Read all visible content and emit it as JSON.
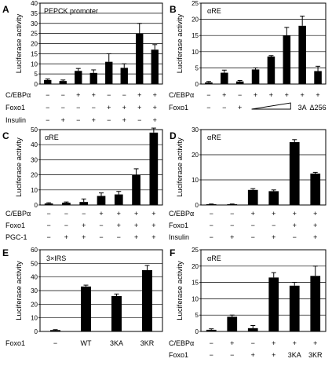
{
  "figure": {
    "panels": [
      {
        "id": "A",
        "title": "PEPCK promoter",
        "ylabel": "Luciferase activity",
        "ylim": [
          0,
          40
        ],
        "ticks": [
          "0",
          "5",
          "10",
          "15",
          "20",
          "25",
          "30",
          "35",
          "40"
        ],
        "tick_values": [
          0,
          5,
          10,
          15,
          20,
          25,
          30,
          35,
          40
        ],
        "values": [
          2,
          1.5,
          6.5,
          5.5,
          11,
          8,
          25,
          17
        ],
        "errors": [
          0.5,
          0.5,
          1.2,
          1.5,
          4,
          2,
          5,
          2.5
        ],
        "rows": [
          {
            "label": "C/EBPα",
            "cells": [
              "−",
              "−",
              "+",
              "+",
              "−",
              "−",
              "+",
              "+"
            ]
          },
          {
            "label": "Foxo1",
            "cells": [
              "−",
              "−",
              "−",
              "−",
              "+",
              "+",
              "+",
              "+"
            ]
          },
          {
            "label": "Insulin",
            "cells": [
              "−",
              "+",
              "−",
              "+",
              "−",
              "+",
              "−",
              "+"
            ]
          }
        ]
      },
      {
        "id": "B",
        "title": "αRE",
        "ylabel": "Luciferase activity",
        "ylim": [
          0,
          25
        ],
        "ticks": [
          "0",
          "5",
          "10",
          "15",
          "20",
          "25"
        ],
        "tick_values": [
          0,
          5,
          10,
          15,
          20,
          25
        ],
        "values": [
          0.5,
          3.5,
          0.8,
          4.5,
          8.5,
          15,
          18,
          4
        ],
        "errors": [
          0.3,
          0.8,
          0.3,
          0.5,
          0.3,
          2.5,
          3,
          1.5
        ],
        "rows": [
          {
            "label": "C/EBPα",
            "cells": [
              "−",
              "+",
              "−",
              "+",
              "+",
              "+",
              "+",
              "+"
            ]
          },
          {
            "label": "Foxo1",
            "cells": [
              "−",
              "−",
              "+",
              "",
              "",
              "",
              "3A",
              "Δ256"
            ]
          }
        ]
      },
      {
        "id": "C",
        "title": "αRE",
        "ylabel": "Luciferase activity",
        "ylim": [
          0,
          50
        ],
        "ticks": [
          "0",
          "10",
          "20",
          "30",
          "40",
          "50"
        ],
        "tick_values": [
          0,
          10,
          20,
          30,
          40,
          50
        ],
        "values": [
          1,
          1.5,
          2,
          6,
          7,
          20,
          48
        ],
        "errors": [
          0.5,
          0.5,
          2,
          2,
          2,
          4,
          3
        ],
        "rows": [
          {
            "label": "C/EBPα",
            "cells": [
              "−",
              "−",
              "−",
              "+",
              "+",
              "+",
              "+"
            ]
          },
          {
            "label": "Foxo1",
            "cells": [
              "−",
              "−",
              "+",
              "−",
              "+",
              "+",
              "+"
            ]
          },
          {
            "label": "PGC-1",
            "cells": [
              "−",
              "+",
              "+",
              "−",
              "−",
              "+",
              "+"
            ]
          }
        ]
      },
      {
        "id": "D",
        "title": "αRE",
        "ylabel": "Luciferase activity",
        "ylim": [
          0,
          30
        ],
        "ticks": [
          "0",
          "10",
          "20",
          "30"
        ],
        "tick_values": [
          0,
          10,
          20,
          30
        ],
        "values": [
          0.3,
          0.3,
          6,
          5.5,
          25,
          12.5
        ],
        "errors": [
          0.1,
          0.1,
          0.5,
          0.5,
          1,
          0.5
        ],
        "rows": [
          {
            "label": "C/EBPα",
            "cells": [
              "−",
              "−",
              "+",
              "+",
              "+",
              "+"
            ]
          },
          {
            "label": "Foxo1",
            "cells": [
              "−",
              "−",
              "−",
              "−",
              "+",
              "+"
            ]
          },
          {
            "label": "Insulin",
            "cells": [
              "−",
              "+",
              "−",
              "+",
              "−",
              "+"
            ]
          }
        ]
      },
      {
        "id": "E",
        "title": "3×IRS",
        "ylabel": "Luciferase activity",
        "ylim": [
          0,
          60
        ],
        "ticks": [
          "0",
          "10",
          "20",
          "30",
          "40",
          "50",
          "60"
        ],
        "tick_values": [
          0,
          10,
          20,
          30,
          40,
          50,
          60
        ],
        "values": [
          1,
          33,
          26,
          45
        ],
        "errors": [
          0.3,
          1,
          1.5,
          3.5
        ],
        "rows": [
          {
            "label": "Foxo1",
            "cells": [
              "−",
              "WT",
              "3KA",
              "3KR"
            ]
          }
        ]
      },
      {
        "id": "F",
        "title": "αRE",
        "ylabel": "Luciferase activity",
        "ylim": [
          0,
          25
        ],
        "ticks": [
          "0",
          "5",
          "10",
          "15",
          "20",
          "25"
        ],
        "tick_values": [
          0,
          5,
          10,
          15,
          20,
          25
        ],
        "values": [
          0.5,
          4.5,
          1,
          16.5,
          14,
          17
        ],
        "errors": [
          0.3,
          0.5,
          0.8,
          1.5,
          1,
          3
        ],
        "rows": [
          {
            "label": "C/EBPα",
            "cells": [
              "−",
              "+",
              "−",
              "+",
              "+",
              "+"
            ]
          },
          {
            "label": "Foxo1",
            "cells": [
              "−",
              "−",
              "+",
              "+",
              "3KA",
              "3KR"
            ]
          }
        ]
      }
    ]
  },
  "chart_data": [
    {
      "type": "bar",
      "title": "PEPCK promoter",
      "ylabel": "Luciferase activity",
      "ylim": [
        0,
        40
      ],
      "categories": [
        "1",
        "2",
        "3",
        "4",
        "5",
        "6",
        "7",
        "8"
      ],
      "values": [
        2,
        1.5,
        6.5,
        5.5,
        11,
        8,
        25,
        17
      ],
      "errors": [
        0.5,
        0.5,
        1.2,
        1.5,
        4,
        2,
        5,
        2.5
      ],
      "grid": true
    },
    {
      "type": "bar",
      "title": "αRE",
      "ylabel": "Luciferase activity",
      "ylim": [
        0,
        25
      ],
      "categories": [
        "1",
        "2",
        "3",
        "4",
        "5",
        "6",
        "7",
        "8"
      ],
      "values": [
        0.5,
        3.5,
        0.8,
        4.5,
        8.5,
        15,
        18,
        4
      ],
      "errors": [
        0.3,
        0.8,
        0.3,
        0.5,
        0.3,
        2.5,
        3,
        1.5
      ],
      "grid": true
    },
    {
      "type": "bar",
      "title": "αRE",
      "ylabel": "Luciferase activity",
      "ylim": [
        0,
        50
      ],
      "categories": [
        "1",
        "2",
        "3",
        "4",
        "5",
        "6",
        "7"
      ],
      "values": [
        1,
        1.5,
        2,
        6,
        7,
        20,
        48
      ],
      "errors": [
        0.5,
        0.5,
        2,
        2,
        2,
        4,
        3
      ],
      "grid": true
    },
    {
      "type": "bar",
      "title": "αRE",
      "ylabel": "Luciferase activity",
      "ylim": [
        0,
        30
      ],
      "categories": [
        "1",
        "2",
        "3",
        "4",
        "5",
        "6"
      ],
      "values": [
        0.3,
        0.3,
        6,
        5.5,
        25,
        12.5
      ],
      "errors": [
        0.1,
        0.1,
        0.5,
        0.5,
        1,
        0.5
      ],
      "grid": true
    },
    {
      "type": "bar",
      "title": "3×IRS",
      "ylabel": "Luciferase activity",
      "ylim": [
        0,
        60
      ],
      "categories": [
        "−",
        "WT",
        "3KA",
        "3KR"
      ],
      "values": [
        1,
        33,
        26,
        45
      ],
      "errors": [
        0.3,
        1,
        1.5,
        3.5
      ],
      "grid": true
    },
    {
      "type": "bar",
      "title": "αRE",
      "ylabel": "Luciferase activity",
      "ylim": [
        0,
        25
      ],
      "categories": [
        "1",
        "2",
        "3",
        "4",
        "5",
        "6"
      ],
      "values": [
        0.5,
        4.5,
        1,
        16.5,
        14,
        17
      ],
      "errors": [
        0.3,
        0.5,
        0.8,
        1.5,
        1,
        3
      ],
      "grid": true
    }
  ]
}
